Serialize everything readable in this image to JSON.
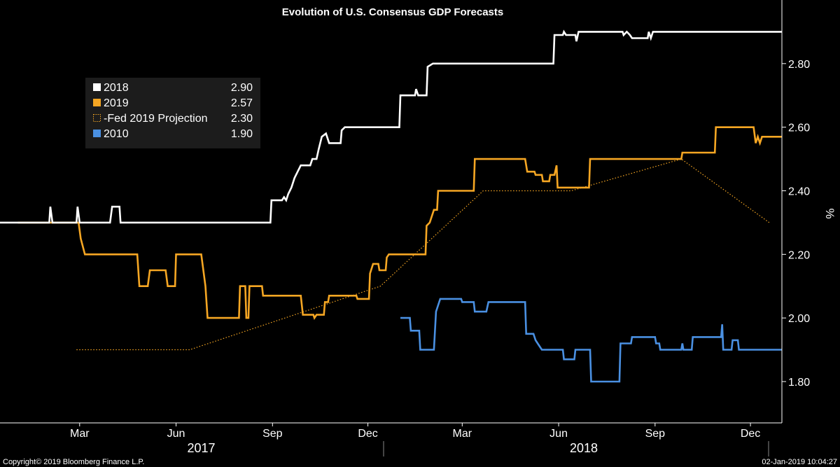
{
  "footer": {
    "copyright": "Copyright© 2019 Bloomberg Finance L.P.",
    "timestamp": "02-Jan-2019 10:04:27"
  },
  "chart_data": {
    "type": "line",
    "title": "Evolution of U.S. Consensus GDP Forecasts",
    "ylabel": "%",
    "ylim": [
      1.67,
      3.0
    ],
    "xlim": [
      "2016-12-15",
      "2018-12-31"
    ],
    "y_ticks": [
      "1.80",
      "2.00",
      "2.20",
      "2.40",
      "2.60",
      "2.80"
    ],
    "x_ticks": [
      {
        "date": "2017-03-01",
        "label": "Mar"
      },
      {
        "date": "2017-06-01",
        "label": "Jun"
      },
      {
        "date": "2017-09-01",
        "label": "Sep"
      },
      {
        "date": "2017-12-01",
        "label": "Dec"
      },
      {
        "date": "2018-03-01",
        "label": "Mar"
      },
      {
        "date": "2018-06-01",
        "label": "Jun"
      },
      {
        "date": "2018-09-01",
        "label": "Sep"
      },
      {
        "date": "2018-12-01",
        "label": "Dec"
      }
    ],
    "years": [
      {
        "label": "2017",
        "date": "2017-06-25"
      },
      {
        "label": "2018",
        "date": "2018-06-25"
      }
    ],
    "grid": false,
    "legend_position": "top-left",
    "series": [
      {
        "name": "2018",
        "value_label": "2.90",
        "color": "#ffffff",
        "style": "solid",
        "points": [
          [
            "2016-12-15",
            2.3
          ],
          [
            "2017-01-31",
            2.3
          ],
          [
            "2017-02-01",
            2.35
          ],
          [
            "2017-02-03",
            2.3
          ],
          [
            "2017-02-26",
            2.3
          ],
          [
            "2017-02-27",
            2.35
          ],
          [
            "2017-03-01",
            2.3
          ],
          [
            "2017-03-30",
            2.3
          ],
          [
            "2017-04-01",
            2.35
          ],
          [
            "2017-04-08",
            2.35
          ],
          [
            "2017-04-09",
            2.3
          ],
          [
            "2017-08-30",
            2.3
          ],
          [
            "2017-08-31",
            2.37
          ],
          [
            "2017-09-10",
            2.37
          ],
          [
            "2017-09-12",
            2.38
          ],
          [
            "2017-09-14",
            2.37
          ],
          [
            "2017-09-16",
            2.39
          ],
          [
            "2017-09-19",
            2.41
          ],
          [
            "2017-09-22",
            2.44
          ],
          [
            "2017-09-25",
            2.46
          ],
          [
            "2017-09-28",
            2.48
          ],
          [
            "2017-10-07",
            2.48
          ],
          [
            "2017-10-09",
            2.5
          ],
          [
            "2017-10-13",
            2.5
          ],
          [
            "2017-10-15",
            2.53
          ],
          [
            "2017-10-18",
            2.57
          ],
          [
            "2017-10-22",
            2.58
          ],
          [
            "2017-10-25",
            2.55
          ],
          [
            "2017-11-05",
            2.55
          ],
          [
            "2017-11-06",
            2.59
          ],
          [
            "2017-11-09",
            2.6
          ],
          [
            "2017-12-31",
            2.6
          ],
          [
            "2018-01-01",
            2.7
          ],
          [
            "2018-01-15",
            2.7
          ],
          [
            "2018-01-16",
            2.72
          ],
          [
            "2018-01-18",
            2.7
          ],
          [
            "2018-01-26",
            2.7
          ],
          [
            "2018-01-27",
            2.79
          ],
          [
            "2018-02-01",
            2.8
          ],
          [
            "2018-05-27",
            2.8
          ],
          [
            "2018-05-28",
            2.89
          ],
          [
            "2018-06-05",
            2.89
          ],
          [
            "2018-06-06",
            2.9
          ],
          [
            "2018-06-08",
            2.89
          ],
          [
            "2018-06-17",
            2.89
          ],
          [
            "2018-06-18",
            2.87
          ],
          [
            "2018-06-20",
            2.9
          ],
          [
            "2018-08-01",
            2.9
          ],
          [
            "2018-08-02",
            2.89
          ],
          [
            "2018-08-05",
            2.9
          ],
          [
            "2018-08-08",
            2.89
          ],
          [
            "2018-08-10",
            2.88
          ],
          [
            "2018-08-25",
            2.88
          ],
          [
            "2018-08-26",
            2.9
          ],
          [
            "2018-08-28",
            2.88
          ],
          [
            "2018-08-30",
            2.9
          ],
          [
            "2018-12-31",
            2.9
          ]
        ]
      },
      {
        "name": "2019",
        "value_label": "2.57",
        "color": "#f5a623",
        "style": "solid",
        "points": [
          [
            "2017-01-01",
            2.3
          ],
          [
            "2017-02-28",
            2.3
          ],
          [
            "2017-03-02",
            2.25
          ],
          [
            "2017-03-06",
            2.2
          ],
          [
            "2017-04-25",
            2.2
          ],
          [
            "2017-04-27",
            2.1
          ],
          [
            "2017-05-05",
            2.1
          ],
          [
            "2017-05-07",
            2.15
          ],
          [
            "2017-05-22",
            2.15
          ],
          [
            "2017-05-24",
            2.1
          ],
          [
            "2017-05-31",
            2.1
          ],
          [
            "2017-06-01",
            2.2
          ],
          [
            "2017-06-25",
            2.2
          ],
          [
            "2017-06-29",
            2.1
          ],
          [
            "2017-07-01",
            2.0
          ],
          [
            "2017-07-31",
            2.0
          ],
          [
            "2017-08-01",
            2.1
          ],
          [
            "2017-08-06",
            2.1
          ],
          [
            "2017-08-07",
            2.0
          ],
          [
            "2017-08-09",
            2.0
          ],
          [
            "2017-08-10",
            2.1
          ],
          [
            "2017-08-22",
            2.1
          ],
          [
            "2017-08-23",
            2.07
          ],
          [
            "2017-09-28",
            2.07
          ],
          [
            "2017-09-30",
            2.01
          ],
          [
            "2017-10-10",
            2.01
          ],
          [
            "2017-10-11",
            2.0
          ],
          [
            "2017-10-13",
            2.01
          ],
          [
            "2017-10-20",
            2.01
          ],
          [
            "2017-10-21",
            2.05
          ],
          [
            "2017-10-24",
            2.05
          ],
          [
            "2017-10-25",
            2.07
          ],
          [
            "2017-11-20",
            2.07
          ],
          [
            "2017-11-21",
            2.06
          ],
          [
            "2017-12-02",
            2.06
          ],
          [
            "2017-12-03",
            2.14
          ],
          [
            "2017-12-06",
            2.17
          ],
          [
            "2017-12-11",
            2.17
          ],
          [
            "2017-12-12",
            2.15
          ],
          [
            "2017-12-18",
            2.15
          ],
          [
            "2017-12-19",
            2.19
          ],
          [
            "2017-12-21",
            2.2
          ],
          [
            "2018-01-25",
            2.2
          ],
          [
            "2018-01-26",
            2.29
          ],
          [
            "2018-01-29",
            2.3
          ],
          [
            "2018-02-02",
            2.34
          ],
          [
            "2018-02-05",
            2.34
          ],
          [
            "2018-02-06",
            2.4
          ],
          [
            "2018-03-12",
            2.4
          ],
          [
            "2018-03-13",
            2.5
          ],
          [
            "2018-04-30",
            2.5
          ],
          [
            "2018-05-02",
            2.46
          ],
          [
            "2018-05-09",
            2.46
          ],
          [
            "2018-05-10",
            2.45
          ],
          [
            "2018-05-16",
            2.45
          ],
          [
            "2018-05-17",
            2.43
          ],
          [
            "2018-05-23",
            2.43
          ],
          [
            "2018-05-24",
            2.45
          ],
          [
            "2018-05-28",
            2.45
          ],
          [
            "2018-05-30",
            2.48
          ],
          [
            "2018-05-31",
            2.41
          ],
          [
            "2018-06-30",
            2.41
          ],
          [
            "2018-07-01",
            2.5
          ],
          [
            "2018-09-26",
            2.5
          ],
          [
            "2018-09-27",
            2.52
          ],
          [
            "2018-10-28",
            2.52
          ],
          [
            "2018-10-29",
            2.6
          ],
          [
            "2018-12-04",
            2.6
          ],
          [
            "2018-12-06",
            2.55
          ],
          [
            "2018-12-08",
            2.57
          ],
          [
            "2018-12-10",
            2.55
          ],
          [
            "2018-12-12",
            2.57
          ],
          [
            "2018-12-31",
            2.57
          ]
        ]
      },
      {
        "name": "Fed 2019 Projection",
        "value_label": "2.30",
        "legend_prefix": "-",
        "color": "#f5a623",
        "style": "dotted",
        "points": [
          [
            "2017-02-26",
            1.9
          ],
          [
            "2017-06-14",
            1.9
          ],
          [
            "2017-12-13",
            2.1
          ],
          [
            "2018-03-21",
            2.4
          ],
          [
            "2018-06-13",
            2.4
          ],
          [
            "2018-09-26",
            2.5
          ],
          [
            "2018-12-19",
            2.3
          ]
        ]
      },
      {
        "name": "2010",
        "value_label": "1.90",
        "color": "#4a90e2",
        "style": "solid",
        "points": [
          [
            "2018-01-01",
            2.0
          ],
          [
            "2018-01-10",
            2.0
          ],
          [
            "2018-01-11",
            1.96
          ],
          [
            "2018-01-19",
            1.96
          ],
          [
            "2018-01-20",
            1.9
          ],
          [
            "2018-02-02",
            1.9
          ],
          [
            "2018-02-04",
            2.02
          ],
          [
            "2018-02-06",
            2.04
          ],
          [
            "2018-02-08",
            2.06
          ],
          [
            "2018-02-28",
            2.06
          ],
          [
            "2018-03-01",
            2.05
          ],
          [
            "2018-03-12",
            2.05
          ],
          [
            "2018-03-13",
            2.02
          ],
          [
            "2018-03-24",
            2.02
          ],
          [
            "2018-03-26",
            2.05
          ],
          [
            "2018-04-30",
            2.05
          ],
          [
            "2018-05-01",
            1.95
          ],
          [
            "2018-05-08",
            1.95
          ],
          [
            "2018-05-10",
            1.93
          ],
          [
            "2018-05-14",
            1.91
          ],
          [
            "2018-05-16",
            1.9
          ],
          [
            "2018-06-05",
            1.9
          ],
          [
            "2018-06-06",
            1.87
          ],
          [
            "2018-06-16",
            1.87
          ],
          [
            "2018-06-17",
            1.9
          ],
          [
            "2018-07-01",
            1.9
          ],
          [
            "2018-07-02",
            1.8
          ],
          [
            "2018-07-29",
            1.8
          ],
          [
            "2018-07-30",
            1.92
          ],
          [
            "2018-08-09",
            1.92
          ],
          [
            "2018-08-10",
            1.94
          ],
          [
            "2018-09-01",
            1.94
          ],
          [
            "2018-09-02",
            1.92
          ],
          [
            "2018-09-05",
            1.92
          ],
          [
            "2018-09-06",
            1.9
          ],
          [
            "2018-09-26",
            1.9
          ],
          [
            "2018-09-27",
            1.92
          ],
          [
            "2018-09-28",
            1.9
          ],
          [
            "2018-10-06",
            1.9
          ],
          [
            "2018-10-07",
            1.94
          ],
          [
            "2018-11-03",
            1.94
          ],
          [
            "2018-11-04",
            1.98
          ],
          [
            "2018-11-05",
            1.9
          ],
          [
            "2018-11-13",
            1.9
          ],
          [
            "2018-11-14",
            1.93
          ],
          [
            "2018-11-19",
            1.93
          ],
          [
            "2018-11-20",
            1.9
          ],
          [
            "2018-12-31",
            1.9
          ]
        ]
      }
    ]
  }
}
